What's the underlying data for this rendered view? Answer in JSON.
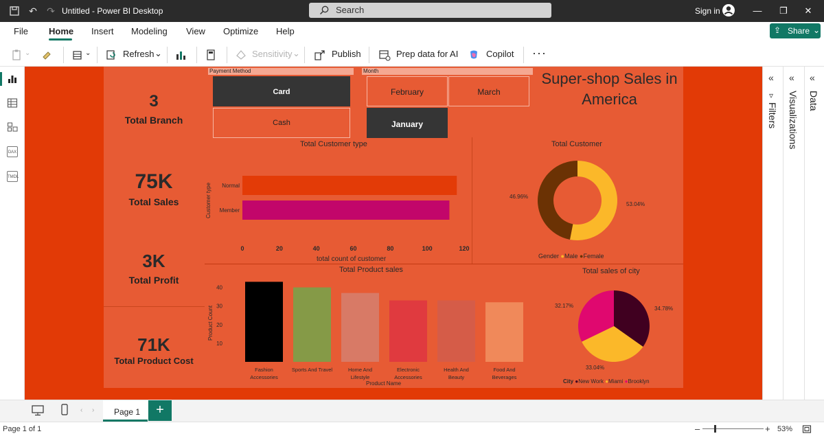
{
  "window": {
    "title": "Untitled - Power BI Desktop",
    "search_placeholder": "Search",
    "signin": "Sign in"
  },
  "menu": {
    "items": [
      "File",
      "Home",
      "Insert",
      "Modeling",
      "View",
      "Optimize",
      "Help"
    ],
    "active": "Home",
    "share_label": "Share"
  },
  "toolbar": {
    "refresh": "Refresh",
    "sensitivity": "Sensitivity",
    "publish": "Publish",
    "prep_data": "Prep data for AI",
    "copilot": "Copilot",
    "more": "···"
  },
  "rail": {
    "dax_label": "DAX",
    "tmdl_label": "TMDL"
  },
  "panes": {
    "filters": "Filters",
    "visualizations": "Visualizations",
    "data": "Data"
  },
  "report": {
    "title": "Super-shop Sales in America",
    "kpis": [
      {
        "value": "3",
        "label": "Total Branch"
      },
      {
        "value": "75K",
        "label": "Total Sales"
      },
      {
        "value": "3K",
        "label": "Total Profit"
      },
      {
        "value": "71K",
        "label": "Total Product Cost"
      }
    ],
    "payment_slicer": {
      "header": "Payment Method",
      "options": [
        "Card",
        "Cash"
      ],
      "selected": "Card"
    },
    "month_slicer": {
      "header": "Month",
      "options": [
        "February",
        "March",
        "January"
      ],
      "selected": "January"
    }
  },
  "chart_data": [
    {
      "type": "bar",
      "orientation": "horizontal",
      "title": "Total Customer type",
      "xlabel": "total count of customer",
      "ylabel": "Customer type",
      "categories": [
        "Normal",
        "Member"
      ],
      "values": [
        116,
        112
      ],
      "xlim": [
        0,
        120
      ],
      "xticks": [
        "0",
        "20",
        "40",
        "60",
        "80",
        "100",
        "120"
      ],
      "colors": [
        "#e33b07",
        "#c2066a"
      ]
    },
    {
      "type": "pie",
      "variant": "donut",
      "title": "Total Customer",
      "legend_title": "Gender",
      "legend_position": "bottom",
      "categories": [
        "Male",
        "Female"
      ],
      "values": [
        53.04,
        46.96
      ],
      "data_labels": [
        "53.04%",
        "46.96%"
      ],
      "colors": [
        "#fbb829",
        "#6b3204"
      ]
    },
    {
      "type": "bar",
      "title": "Total Product sales",
      "xlabel": "Product Name",
      "ylabel": "Product Count",
      "categories": [
        "Fashion Accessories",
        "Sports And Travel",
        "Home And Lifestyle",
        "Electronic Accessories",
        "Health And Beauty",
        "Food And Beverages"
      ],
      "values": [
        43,
        40,
        37,
        33,
        33,
        32
      ],
      "yticks": [
        "10",
        "20",
        "30",
        "40"
      ],
      "ylim": [
        0,
        45
      ],
      "colors": [
        "#000000",
        "#859a47",
        "#d87a66",
        "#e03a3f",
        "#d55c48",
        "#f0895a"
      ]
    },
    {
      "type": "pie",
      "title": "Total sales of city",
      "legend_title": "City",
      "legend_position": "bottom",
      "categories": [
        "New Work",
        "Miami",
        "Brooklyn"
      ],
      "values": [
        34.78,
        33.04,
        32.17
      ],
      "data_labels": [
        "34.78%",
        "33.04%",
        "32.17%"
      ],
      "colors": [
        "#400020",
        "#fbb829",
        "#e0086f"
      ]
    }
  ],
  "pages": {
    "tab": "Page 1",
    "add": "+"
  },
  "status": {
    "page_info": "Page 1 of 1",
    "zoom": "53%",
    "zoom_level": 0.53
  }
}
